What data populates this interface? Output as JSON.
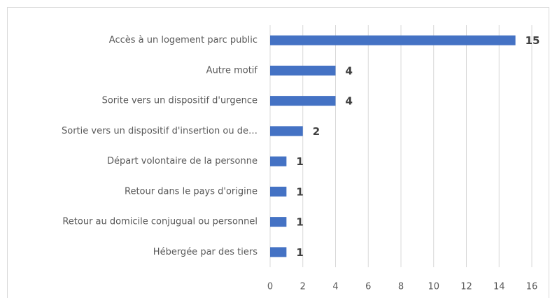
{
  "chart_data": {
    "type": "bar",
    "orientation": "horizontal",
    "categories": [
      "Accès à un logement parc public",
      "Autre motif",
      "Sorite vers un dispositif d'urgence",
      "Sortie vers un dispositif d'insertion ou de…",
      "Départ volontaire de la personne",
      "Retour dans le pays d'origine",
      "Retour au domicile conjugual ou personnel",
      "Hébergée par des tiers"
    ],
    "values": [
      15,
      4,
      4,
      2,
      1,
      1,
      1,
      1
    ],
    "color": "#4472c4",
    "xlim": [
      0,
      16
    ],
    "xticks": [
      0,
      2,
      4,
      6,
      8,
      10,
      12,
      14,
      16
    ],
    "grid": true
  }
}
